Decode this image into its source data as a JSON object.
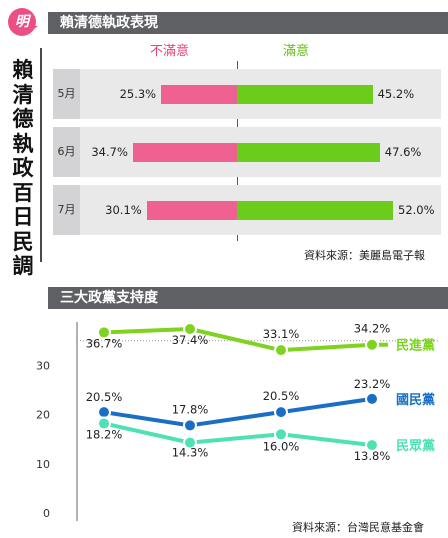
{
  "logo_text": "明",
  "sidebar_title": "賴清德執政百日民調",
  "chart_data": [
    {
      "type": "bar",
      "title": "賴清德執政表現",
      "categories": [
        "5月",
        "6月",
        "7月"
      ],
      "series": [
        {
          "name": "不滿意",
          "values": [
            25.3,
            34.7,
            30.1
          ],
          "color": "#ef6190"
        },
        {
          "name": "滿意",
          "values": [
            45.2,
            47.6,
            52.0
          ],
          "color": "#6ccc1c"
        }
      ],
      "value_labels": {
        "dissatisfied": [
          "25.3%",
          "34.7%",
          "30.1%"
        ],
        "satisfied": [
          "45.2%",
          "47.6%",
          "52.0%"
        ]
      },
      "source": "資料來源：美麗島電子報"
    },
    {
      "type": "line",
      "title": "三大政黨支持度",
      "x_count": 4,
      "yticks": [
        "0",
        "10",
        "20",
        "30"
      ],
      "ylim": [
        0,
        40
      ],
      "series": [
        {
          "name": "民進黨",
          "values": [
            36.7,
            37.4,
            33.1,
            34.2
          ],
          "labels": [
            "36.7%",
            "37.4%",
            "33.1%",
            "34.2%"
          ],
          "color": "#7ed321"
        },
        {
          "name": "國民黨",
          "values": [
            20.5,
            17.8,
            20.5,
            23.2
          ],
          "labels": [
            "20.5%",
            "17.8%",
            "20.5%",
            "23.2%"
          ],
          "color": "#1a6fc4"
        },
        {
          "name": "民眾黨",
          "values": [
            18.2,
            14.3,
            16.0,
            13.8
          ],
          "labels": [
            "18.2%",
            "14.3%",
            "16.0%",
            "13.8%"
          ],
          "color": "#4fe0b4"
        }
      ],
      "source": "資料來源：台灣民意基金會"
    }
  ]
}
